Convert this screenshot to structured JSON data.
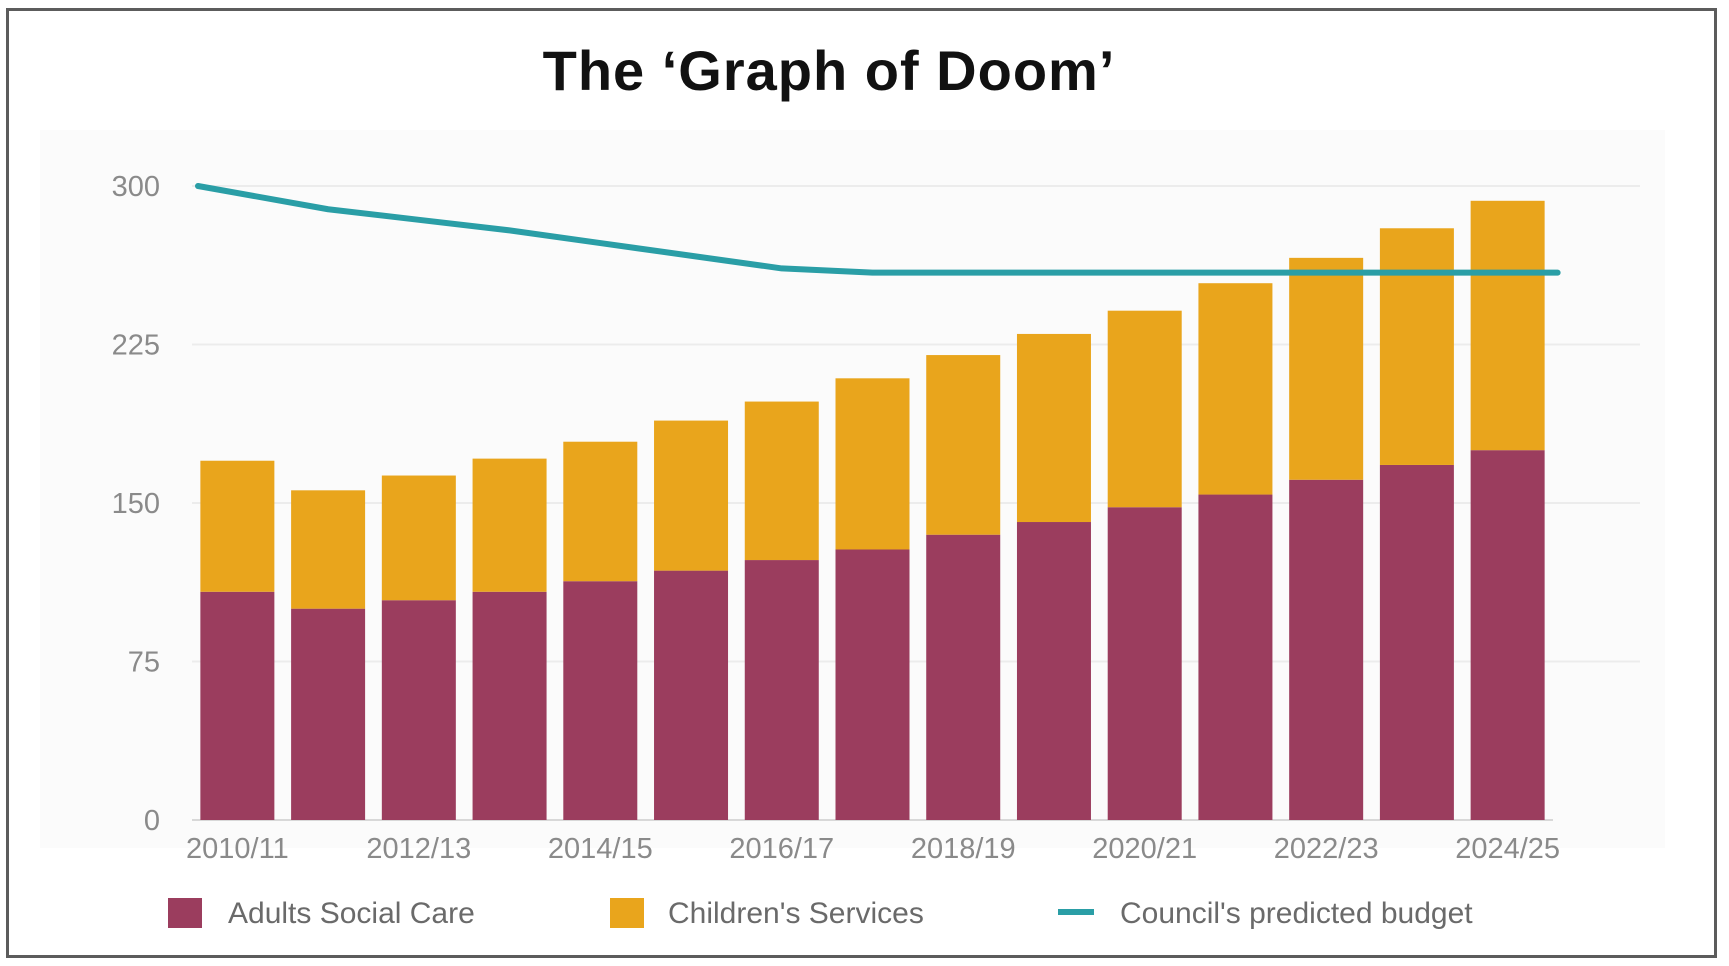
{
  "chart_data": {
    "type": "bar",
    "stacked": true,
    "title": "The ‘Graph of Doom’",
    "xlabel": "",
    "ylabel": "",
    "ylim": [
      0,
      300
    ],
    "yticks": [
      0,
      75,
      150,
      225,
      300
    ],
    "grid": true,
    "legend_position": "bottom",
    "categories": [
      "2010/11",
      "2011/12",
      "2012/13",
      "2013/14",
      "2014/15",
      "2015/16",
      "2016/17",
      "2017/18",
      "2018/19",
      "2019/20",
      "2020/21",
      "2021/22",
      "2022/23",
      "2023/24",
      "2024/25"
    ],
    "xtick_labels": [
      "2010/11",
      "2012/13",
      "2014/15",
      "2016/17",
      "2018/19",
      "2020/21",
      "2022/23",
      "2024/25"
    ],
    "series": [
      {
        "name": "Adults Social Care",
        "type": "bar",
        "color": "#9b3d5e",
        "values": [
          108,
          100,
          104,
          108,
          113,
          118,
          123,
          128,
          135,
          141,
          148,
          154,
          161,
          168,
          175
        ]
      },
      {
        "name": "Children's Services",
        "type": "bar",
        "color": "#e9a51c",
        "values": [
          62,
          56,
          59,
          63,
          66,
          71,
          75,
          81,
          85,
          89,
          93,
          100,
          105,
          112,
          118
        ]
      },
      {
        "name": "Council's predicted budget",
        "type": "line",
        "color": "#2a9ea6",
        "values": [
          300,
          289,
          284,
          279,
          273,
          267,
          261,
          259,
          259,
          259,
          259,
          259,
          259,
          259,
          259
        ]
      }
    ]
  }
}
